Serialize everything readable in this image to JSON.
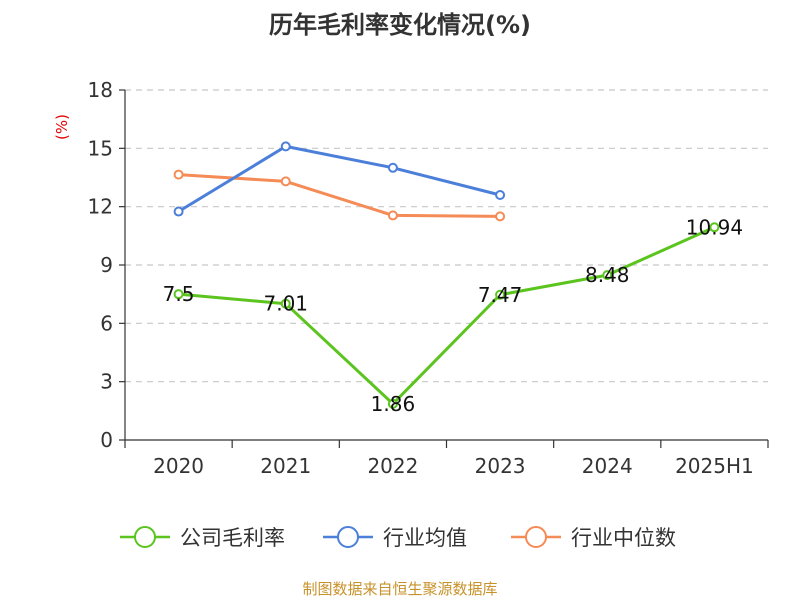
{
  "chart_data": {
    "type": "line",
    "title": "历年毛利率变化情况(%)",
    "ylabel": "(%)",
    "categories": [
      "2020",
      "2021",
      "2022",
      "2023",
      "2024",
      "2025H1"
    ],
    "ylim": [
      0,
      18
    ],
    "yticks": [
      0,
      3,
      6,
      9,
      12,
      15,
      18
    ],
    "grid": true,
    "legend_position": "bottom",
    "series": [
      {
        "name": "公司毛利率",
        "color": "#5cc41e",
        "values": [
          7.5,
          7.01,
          1.86,
          7.47,
          8.48,
          10.94
        ],
        "labels": [
          "7.5",
          "7.01",
          "1.86",
          "7.47",
          "8.48",
          "10.94"
        ]
      },
      {
        "name": "行业均值",
        "color": "#4b7fd9",
        "values": [
          11.75,
          15.1,
          14.0,
          12.6,
          null,
          null
        ]
      },
      {
        "name": "行业中位数",
        "color": "#f58b56",
        "values": [
          13.65,
          13.3,
          11.55,
          11.5,
          null,
          null
        ]
      }
    ],
    "source": "制图数据来自恒生聚源数据库"
  }
}
